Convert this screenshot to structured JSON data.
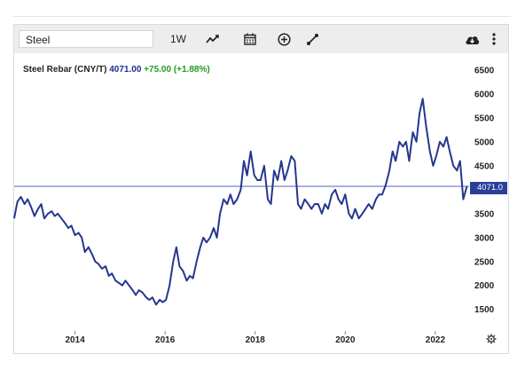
{
  "toolbar": {
    "search_value": "Steel",
    "interval_label": "1W",
    "icons": [
      "line-chart-icon",
      "calendar-icon",
      "add-indicator-icon",
      "draw-tool-icon",
      "cloud-download-icon",
      "more-options-icon"
    ]
  },
  "legend": {
    "name": "Steel Rebar (CNY/T)",
    "value": "4071.00",
    "change": "+75.00 (+1.88%)"
  },
  "price_tag": "4071.0",
  "colors": {
    "line": "#25378f",
    "change_positive": "#1f9b1f",
    "toolbar_bg": "#ededed"
  },
  "chart_data": {
    "type": "line",
    "title": "Steel Rebar (CNY/T)",
    "xlabel": "",
    "ylabel": "",
    "y_axis_position": "right",
    "yticks": [
      1500,
      2000,
      2500,
      3000,
      3500,
      4000,
      4500,
      5000,
      5500,
      6000,
      6500
    ],
    "ytick_labels": [
      "1500",
      "2000",
      "2500",
      "3000",
      "3500",
      "4000",
      "4500",
      "5000",
      "5500",
      "6000",
      "6500"
    ],
    "xticks": [
      2014,
      2016,
      2018,
      2020,
      2022
    ],
    "xtick_labels": [
      "2014",
      "2016",
      "2018",
      "2020",
      "2022"
    ],
    "xlim": [
      2012.65,
      2022.75
    ],
    "ylim": [
      1050,
      6850
    ],
    "grid": false,
    "last_value": 4071,
    "series": [
      {
        "name": "Steel Rebar (CNY/T)",
        "x": [
          2012.65,
          2012.72,
          2012.8,
          2012.88,
          2012.95,
          2013.02,
          2013.1,
          2013.18,
          2013.25,
          2013.32,
          2013.4,
          2013.48,
          2013.55,
          2013.62,
          2013.7,
          2013.78,
          2013.85,
          2013.92,
          2014.0,
          2014.08,
          2014.15,
          2014.22,
          2014.3,
          2014.38,
          2014.45,
          2014.52,
          2014.6,
          2014.68,
          2014.75,
          2014.82,
          2014.9,
          2014.98,
          2015.05,
          2015.12,
          2015.2,
          2015.28,
          2015.35,
          2015.42,
          2015.5,
          2015.58,
          2015.65,
          2015.72,
          2015.8,
          2015.88,
          2015.95,
          2016.02,
          2016.1,
          2016.18,
          2016.25,
          2016.32,
          2016.4,
          2016.48,
          2016.55,
          2016.62,
          2016.7,
          2016.78,
          2016.85,
          2016.92,
          2017.0,
          2017.08,
          2017.15,
          2017.22,
          2017.3,
          2017.38,
          2017.45,
          2017.52,
          2017.6,
          2017.68,
          2017.75,
          2017.82,
          2017.9,
          2017.98,
          2018.05,
          2018.12,
          2018.2,
          2018.28,
          2018.35,
          2018.42,
          2018.5,
          2018.58,
          2018.65,
          2018.72,
          2018.8,
          2018.88,
          2018.95,
          2019.02,
          2019.1,
          2019.18,
          2019.25,
          2019.32,
          2019.4,
          2019.48,
          2019.55,
          2019.62,
          2019.7,
          2019.78,
          2019.85,
          2019.92,
          2020.0,
          2020.08,
          2020.15,
          2020.22,
          2020.3,
          2020.38,
          2020.45,
          2020.52,
          2020.6,
          2020.68,
          2020.75,
          2020.82,
          2020.9,
          2020.98,
          2021.05,
          2021.12,
          2021.2,
          2021.28,
          2021.35,
          2021.42,
          2021.5,
          2021.58,
          2021.65,
          2021.72,
          2021.8,
          2021.88,
          2021.95,
          2022.02,
          2022.1,
          2022.18,
          2022.25,
          2022.32,
          2022.4,
          2022.48,
          2022.55,
          2022.62,
          2022.7
        ],
        "values": [
          3400,
          3750,
          3850,
          3700,
          3800,
          3650,
          3450,
          3600,
          3700,
          3400,
          3500,
          3550,
          3450,
          3500,
          3400,
          3300,
          3200,
          3250,
          3050,
          3100,
          3000,
          2700,
          2800,
          2650,
          2500,
          2450,
          2350,
          2400,
          2200,
          2250,
          2100,
          2050,
          2000,
          2100,
          2000,
          1900,
          1800,
          1900,
          1850,
          1750,
          1700,
          1750,
          1600,
          1700,
          1650,
          1700,
          2000,
          2500,
          2800,
          2400,
          2300,
          2100,
          2200,
          2150,
          2500,
          2800,
          3000,
          2900,
          3000,
          3200,
          3000,
          3500,
          3800,
          3700,
          3900,
          3700,
          3800,
          4000,
          4600,
          4300,
          4800,
          4300,
          4200,
          4200,
          4500,
          3800,
          3700,
          4400,
          4200,
          4600,
          4200,
          4400,
          4700,
          4600,
          3700,
          3600,
          3800,
          3700,
          3600,
          3700,
          3700,
          3500,
          3700,
          3600,
          3900,
          4000,
          3800,
          3700,
          3900,
          3500,
          3400,
          3600,
          3400,
          3500,
          3600,
          3700,
          3600,
          3800,
          3900,
          3900,
          4100,
          4400,
          4800,
          4600,
          5000,
          4900,
          5000,
          4600,
          5200,
          5000,
          5600,
          5900,
          5300,
          4800,
          4500,
          4700,
          5000,
          4900,
          5100,
          4800,
          4500,
          4400,
          4600,
          3800,
          4071
        ]
      }
    ]
  }
}
